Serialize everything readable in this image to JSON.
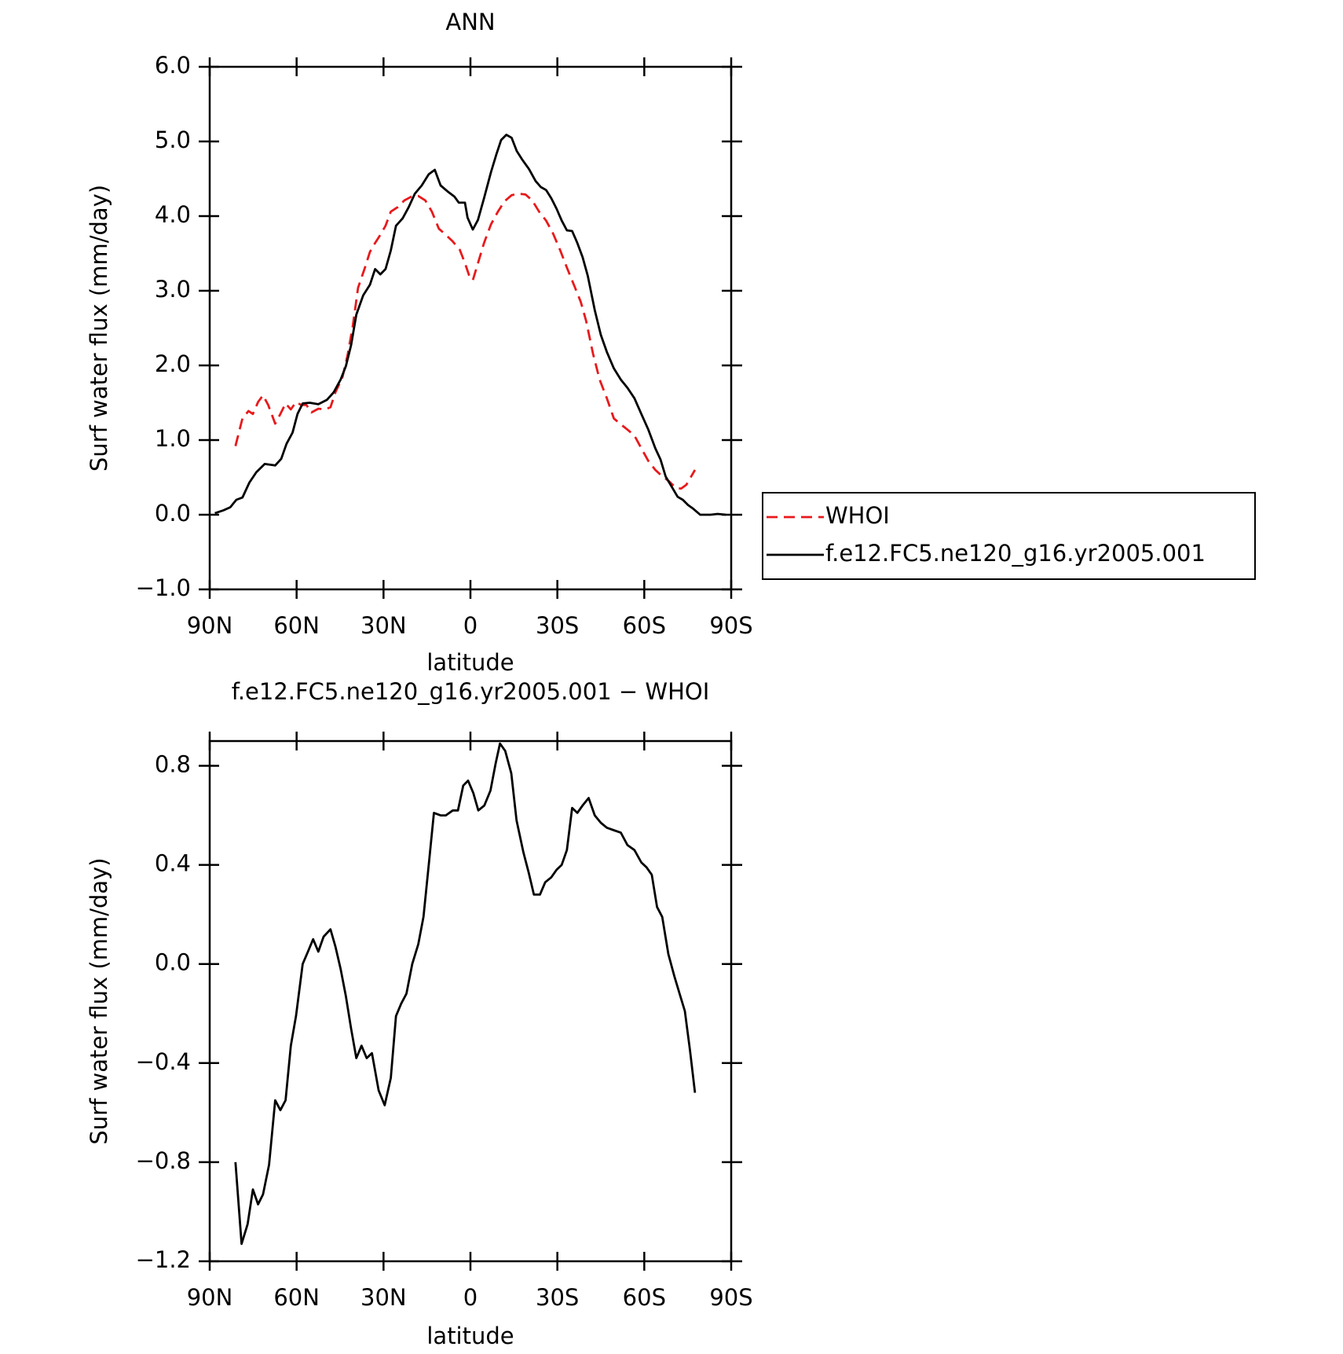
{
  "chart_data": [
    {
      "type": "line",
      "title": "ANN",
      "xlabel": "latitude",
      "ylabel": "Surf water flux (mm/day)",
      "xlim": [
        90,
        -90
      ],
      "xticks": [
        {
          "value": 90,
          "label": "90N"
        },
        {
          "value": 60,
          "label": "60N"
        },
        {
          "value": 30,
          "label": "30N"
        },
        {
          "value": 0,
          "label": "0"
        },
        {
          "value": -30,
          "label": "30S"
        },
        {
          "value": -60,
          "label": "60S"
        },
        {
          "value": -90,
          "label": "90S"
        }
      ],
      "ylim": [
        -1,
        6
      ],
      "yticks": [
        {
          "value": -1,
          "label": "−1.0"
        },
        {
          "value": 0,
          "label": "0.0"
        },
        {
          "value": 1,
          "label": "1.0"
        },
        {
          "value": 2,
          "label": "2.0"
        },
        {
          "value": 3,
          "label": "3.0"
        },
        {
          "value": 4,
          "label": "4.0"
        },
        {
          "value": 5,
          "label": "5.0"
        },
        {
          "value": 6,
          "label": "6.0"
        }
      ],
      "legend": "right",
      "series": [
        {
          "name": "WHOI",
          "color": "#e8191b",
          "dash": true,
          "x": [
            81.1,
            78.7,
            76.6,
            75.1,
            73.3,
            71.6,
            69.8,
            67.4,
            65.6,
            63.8,
            62.0,
            60.2,
            58.4,
            56.6,
            54.9,
            52.5,
            50.1,
            48.3,
            46.6,
            44.2,
            42.4,
            40.6,
            38.8,
            36.4,
            34.7,
            32.9,
            31.1,
            29.3,
            27.5,
            25.1,
            22.8,
            20.4,
            18.0,
            15.6,
            13.3,
            10.9,
            8.5,
            6.1,
            3.7,
            1.9,
            0.4,
            -0.8,
            -2.6,
            -4.7,
            -7.1,
            -9.5,
            -11.8,
            -14.2,
            -16.6,
            -19.0,
            -21.3,
            -23.7,
            -26.1,
            -28.5,
            -30.9,
            -33.3,
            -35.7,
            -38.1,
            -39.9,
            -42.3,
            -44.6,
            -47.1,
            -49.5,
            -51.9,
            -54.2,
            -56.6,
            -59.0,
            -61.4,
            -63.8,
            -66.1,
            -68.5,
            -70.9,
            -72.7,
            -74.5,
            -76.3,
            -77.5
          ],
          "values": [
            0.92,
            1.29,
            1.39,
            1.35,
            1.51,
            1.6,
            1.47,
            1.22,
            1.35,
            1.49,
            1.41,
            1.51,
            1.47,
            1.47,
            1.37,
            1.42,
            1.41,
            1.44,
            1.64,
            1.84,
            2.14,
            2.53,
            3.04,
            3.31,
            3.52,
            3.64,
            3.75,
            3.87,
            4.06,
            4.12,
            4.21,
            4.26,
            4.27,
            4.21,
            4.06,
            3.83,
            3.75,
            3.66,
            3.55,
            3.37,
            3.2,
            3.14,
            3.37,
            3.64,
            3.89,
            4.06,
            4.2,
            4.28,
            4.3,
            4.29,
            4.21,
            4.06,
            3.94,
            3.77,
            3.55,
            3.31,
            3.08,
            2.85,
            2.6,
            2.16,
            1.81,
            1.56,
            1.29,
            1.21,
            1.14,
            1.06,
            0.89,
            0.72,
            0.6,
            0.52,
            0.45,
            0.36,
            0.35,
            0.4,
            0.52,
            0.6
          ]
        },
        {
          "name": "f.e12.FC5.ne120_g16.yr2005.001",
          "color": "#000000",
          "dash": false,
          "x": [
            88.2,
            85.2,
            82.9,
            80.8,
            78.7,
            76.3,
            73.9,
            71.0,
            67.4,
            65.3,
            63.5,
            61.4,
            59.7,
            57.9,
            55.5,
            52.5,
            49.5,
            47.2,
            44.8,
            43.0,
            41.2,
            39.4,
            37.0,
            34.7,
            32.9,
            31.1,
            29.3,
            27.5,
            25.7,
            23.4,
            21.3,
            19.2,
            16.8,
            14.4,
            12.3,
            10.3,
            7.9,
            5.5,
            4.0,
            1.9,
            1.0,
            -0.8,
            -2.6,
            -4.7,
            -7.1,
            -8.9,
            -10.6,
            -12.4,
            -14.2,
            -16.0,
            -17.8,
            -20.2,
            -22.5,
            -24.3,
            -26.1,
            -27.9,
            -29.7,
            -31.5,
            -33.3,
            -35.1,
            -36.9,
            -38.7,
            -40.5,
            -42.9,
            -45.0,
            -47.1,
            -49.5,
            -51.9,
            -54.2,
            -56.6,
            -59.0,
            -61.4,
            -63.8,
            -65.6,
            -67.4,
            -69.7,
            -71.5,
            -73.3,
            -75.1,
            -76.9,
            -79.3,
            -82.9,
            -85.3,
            -88.2
          ],
          "values": [
            0.02,
            0.06,
            0.1,
            0.2,
            0.23,
            0.43,
            0.57,
            0.68,
            0.66,
            0.75,
            0.95,
            1.1,
            1.35,
            1.49,
            1.5,
            1.48,
            1.54,
            1.64,
            1.81,
            1.99,
            2.27,
            2.68,
            2.94,
            3.08,
            3.29,
            3.22,
            3.29,
            3.54,
            3.87,
            3.97,
            4.12,
            4.3,
            4.41,
            4.56,
            4.62,
            4.41,
            4.33,
            4.26,
            4.18,
            4.18,
            3.98,
            3.82,
            3.95,
            4.24,
            4.59,
            4.82,
            5.02,
            5.09,
            5.05,
            4.87,
            4.76,
            4.63,
            4.47,
            4.39,
            4.35,
            4.24,
            4.1,
            3.94,
            3.81,
            3.8,
            3.64,
            3.45,
            3.2,
            2.74,
            2.41,
            2.18,
            1.96,
            1.81,
            1.7,
            1.56,
            1.35,
            1.14,
            0.89,
            0.74,
            0.51,
            0.36,
            0.24,
            0.2,
            0.13,
            0.08,
            0,
            0,
            0.01,
            0
          ]
        }
      ]
    },
    {
      "type": "line",
      "title": "f.e12.FC5.ne120_g16.yr2005.001 − WHOI",
      "xlabel": "latitude",
      "ylabel": "Surf water flux (mm/day)",
      "xlim": [
        90,
        -90
      ],
      "xticks": [
        {
          "value": 90,
          "label": "90N"
        },
        {
          "value": 60,
          "label": "60N"
        },
        {
          "value": 30,
          "label": "30N"
        },
        {
          "value": 0,
          "label": "0"
        },
        {
          "value": -30,
          "label": "30S"
        },
        {
          "value": -60,
          "label": "60S"
        },
        {
          "value": -90,
          "label": "90S"
        }
      ],
      "ylim": [
        -1.2,
        0.9
      ],
      "yticks": [
        {
          "value": -1.2,
          "label": "−1.2"
        },
        {
          "value": -0.8,
          "label": "−0.8"
        },
        {
          "value": -0.4,
          "label": "−0.4"
        },
        {
          "value": 0,
          "label": "0.0"
        },
        0.4,
        0.8
      ],
      "series": [
        {
          "color": "#000000",
          "dash": false,
          "x": [
            81.1,
            79.0,
            76.9,
            75.1,
            73.3,
            71.6,
            69.5,
            67.4,
            65.6,
            63.8,
            62.0,
            60.2,
            57.9,
            56.1,
            54.3,
            52.5,
            50.7,
            48.3,
            46.6,
            44.8,
            43.0,
            41.2,
            39.4,
            37.6,
            35.8,
            34.0,
            31.7,
            29.6,
            27.5,
            25.7,
            23.9,
            22.1,
            20.1,
            18.0,
            16.2,
            14.4,
            12.6,
            10.3,
            8.5,
            6.1,
            4.3,
            2.5,
            0.8,
            -1.0,
            -2.7,
            -4.8,
            -6.9,
            -8.7,
            -10.2,
            -12.0,
            -14.1,
            -15.9,
            -18.3,
            -20.1,
            -21.9,
            -24.0,
            -25.8,
            -27.9,
            -29.7,
            -31.5,
            -33.3,
            -35.1,
            -36.9,
            -38.7,
            -40.8,
            -42.9,
            -45.0,
            -47.1,
            -49.5,
            -51.9,
            -54.2,
            -56.6,
            -59.0,
            -60.8,
            -62.6,
            -64.4,
            -66.2,
            -68.3,
            -70.4,
            -72.2,
            -74.0,
            -75.8,
            -77.5
          ],
          "values": [
            -0.8,
            -1.13,
            -1.05,
            -0.91,
            -0.97,
            -0.93,
            -0.81,
            -0.55,
            -0.59,
            -0.55,
            -0.33,
            -0.21,
            0,
            0.05,
            0.1,
            0.05,
            0.11,
            0.14,
            0.07,
            -0.02,
            -0.13,
            -0.26,
            -0.38,
            -0.33,
            -0.38,
            -0.36,
            -0.51,
            -0.57,
            -0.46,
            -0.21,
            -0.16,
            -0.12,
            0,
            0.08,
            0.19,
            0.4,
            0.61,
            0.6,
            0.6,
            0.62,
            0.62,
            0.72,
            0.74,
            0.69,
            0.62,
            0.64,
            0.7,
            0.81,
            0.89,
            0.86,
            0.77,
            0.58,
            0.45,
            0.37,
            0.28,
            0.28,
            0.33,
            0.35,
            0.38,
            0.4,
            0.46,
            0.63,
            0.61,
            0.64,
            0.67,
            0.6,
            0.57,
            0.55,
            0.54,
            0.53,
            0.48,
            0.46,
            0.41,
            0.39,
            0.36,
            0.23,
            0.19,
            0.04,
            -0.05,
            -0.12,
            -0.19,
            -0.35,
            -0.52
          ]
        }
      ]
    }
  ]
}
